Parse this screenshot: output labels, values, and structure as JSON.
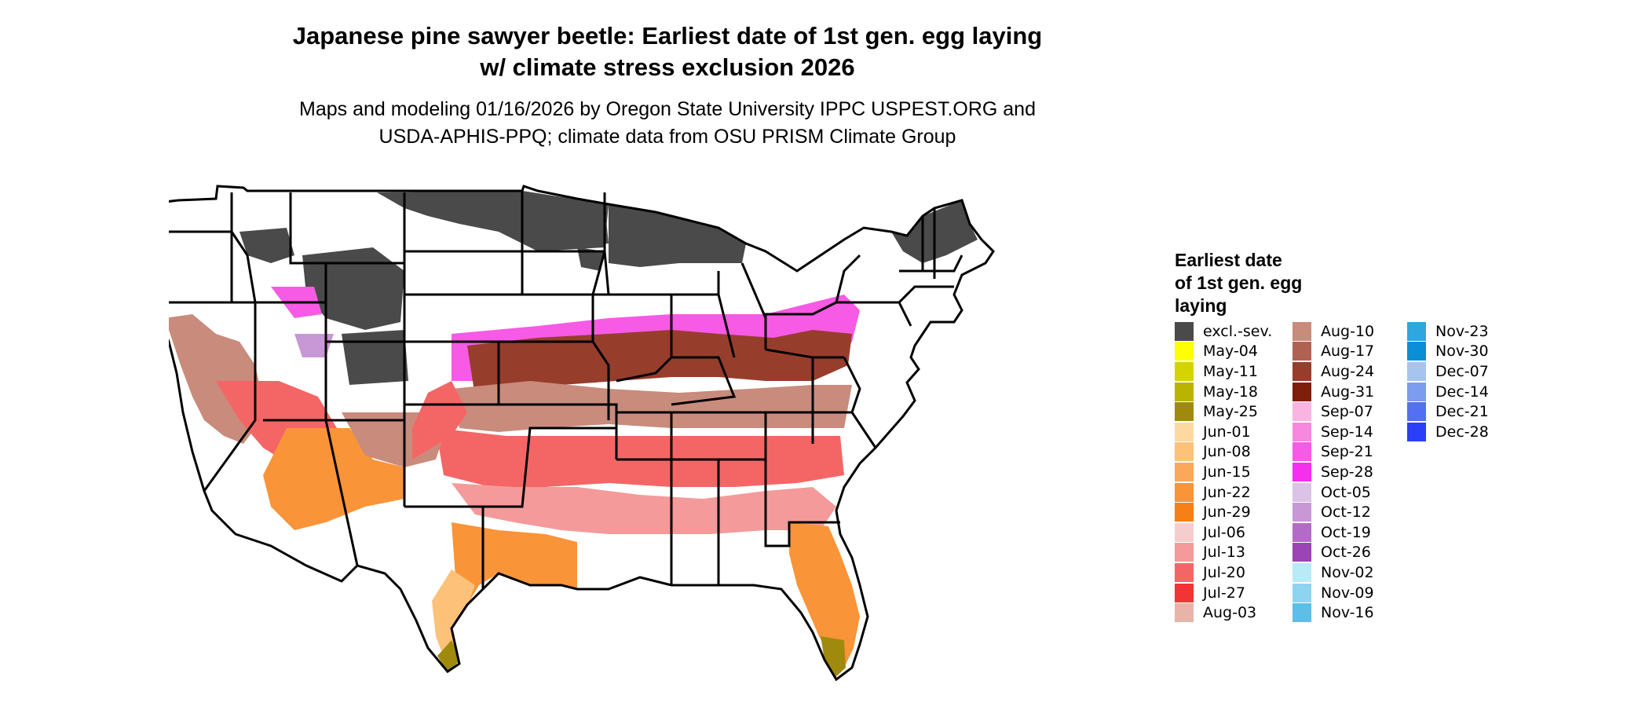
{
  "title_line1": "Japanese pine sawyer beetle: Earliest date of 1st gen. egg laying",
  "title_line2": "w/ climate stress exclusion 2026",
  "subtitle_line1": "Maps and modeling 01/16/2026 by Oregon State University IPPC USPEST.ORG and",
  "subtitle_line2": "USDA-APHIS-PPQ; climate data from OSU PRISM Climate Group",
  "legend": {
    "title_line1": "Earliest date",
    "title_line2": "of 1st gen. egg",
    "title_line3": "laying",
    "items": [
      {
        "label": "excl.-sev.",
        "color": "#4a4a4a"
      },
      {
        "label": "May-04",
        "color": "#ffff00"
      },
      {
        "label": "May-11",
        "color": "#d4d400"
      },
      {
        "label": "May-18",
        "color": "#bab300"
      },
      {
        "label": "May-25",
        "color": "#a08a0e"
      },
      {
        "label": "Jun-01",
        "color": "#fdd9a0"
      },
      {
        "label": "Jun-08",
        "color": "#fdc17a"
      },
      {
        "label": "Jun-15",
        "color": "#fca85a"
      },
      {
        "label": "Jun-22",
        "color": "#fa9438"
      },
      {
        "label": "Jun-29",
        "color": "#f67f16"
      },
      {
        "label": "Jul-06",
        "color": "#f6cdcd"
      },
      {
        "label": "Jul-13",
        "color": "#f49a9a"
      },
      {
        "label": "Jul-20",
        "color": "#f46666"
      },
      {
        "label": "Jul-27",
        "color": "#f23434"
      },
      {
        "label": "Aug-03",
        "color": "#e8b4aa"
      },
      {
        "label": "Aug-10",
        "color": "#c98b7c"
      },
      {
        "label": "Aug-17",
        "color": "#b06252"
      },
      {
        "label": "Aug-24",
        "color": "#973d2c"
      },
      {
        "label": "Aug-31",
        "color": "#7e1f0c"
      },
      {
        "label": "Sep-07",
        "color": "#f9b5e2"
      },
      {
        "label": "Sep-14",
        "color": "#f788e0"
      },
      {
        "label": "Sep-21",
        "color": "#f75ae4"
      },
      {
        "label": "Sep-28",
        "color": "#f62ef0"
      },
      {
        "label": "Oct-05",
        "color": "#dcc2e6"
      },
      {
        "label": "Oct-12",
        "color": "#c797d6"
      },
      {
        "label": "Oct-19",
        "color": "#b26cc6"
      },
      {
        "label": "Oct-26",
        "color": "#9c44b5"
      },
      {
        "label": "Nov-02",
        "color": "#b8eaf8"
      },
      {
        "label": "Nov-09",
        "color": "#8dd4f0"
      },
      {
        "label": "Nov-16",
        "color": "#5fbde8"
      },
      {
        "label": "Nov-23",
        "color": "#2ea6e0"
      },
      {
        "label": "Nov-30",
        "color": "#0a8ed6"
      },
      {
        "label": "Dec-07",
        "color": "#a6c4ee"
      },
      {
        "label": "Dec-14",
        "color": "#7c9cef"
      },
      {
        "label": "Dec-21",
        "color": "#5370f2"
      },
      {
        "label": "Dec-28",
        "color": "#2a3ff8"
      }
    ]
  }
}
